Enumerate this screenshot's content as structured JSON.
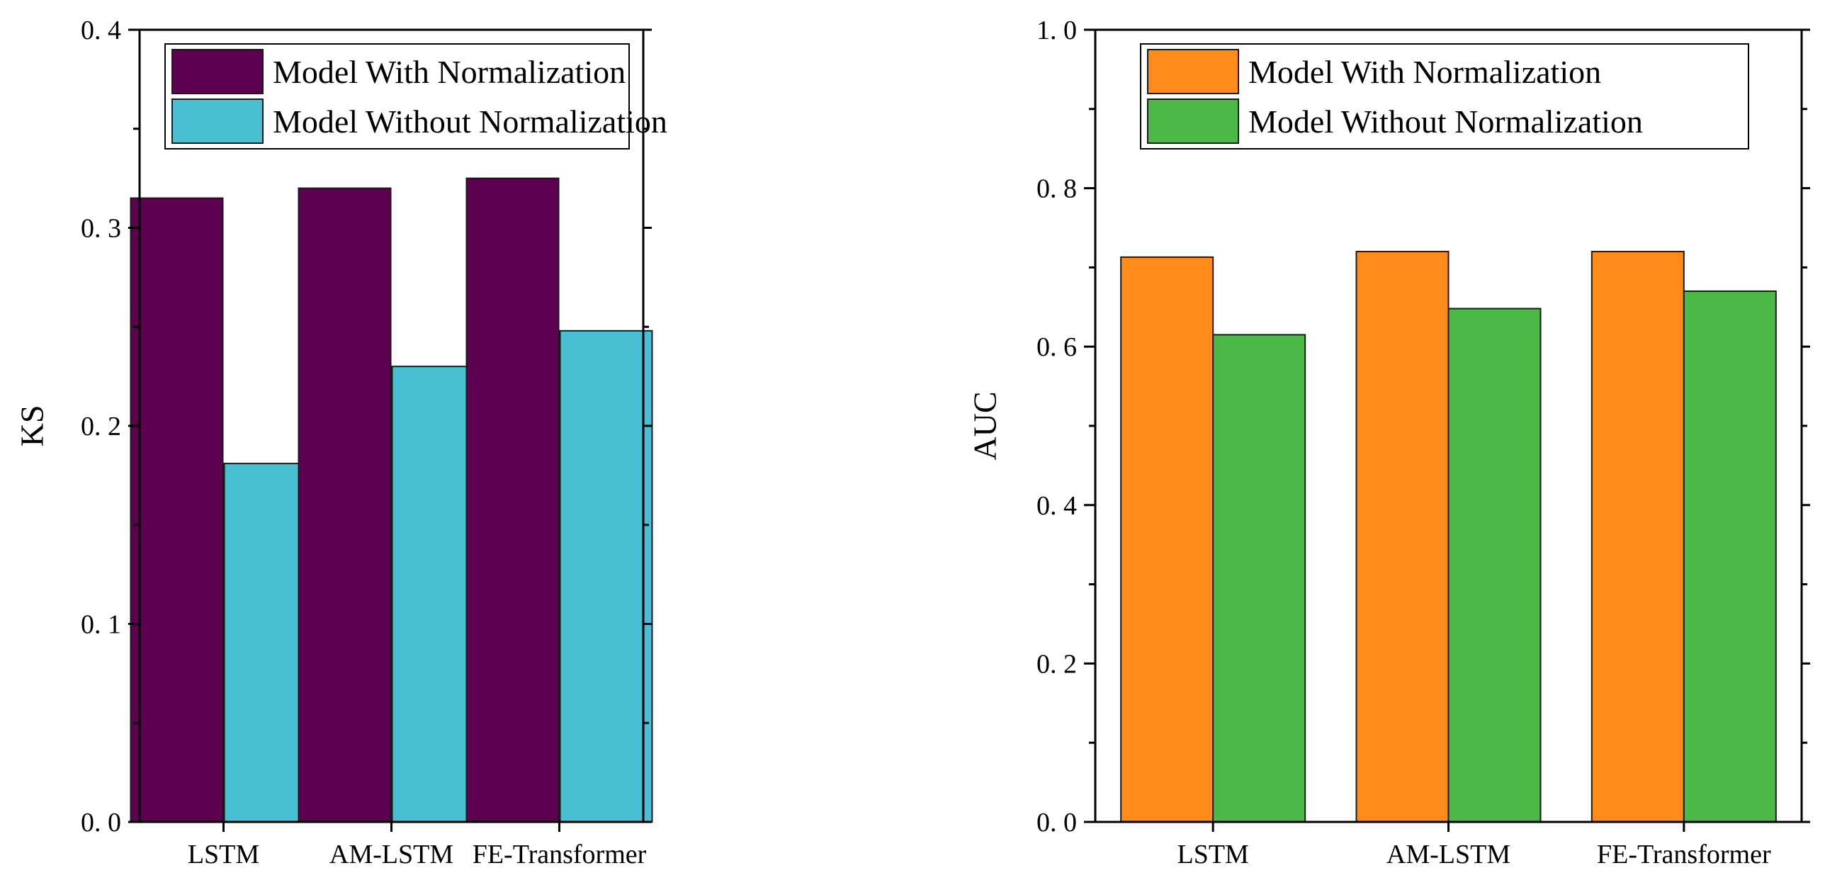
{
  "chart_data": [
    {
      "type": "bar",
      "categories": [
        "LSTM",
        "AM-LSTM",
        "FE-Transformer"
      ],
      "series": [
        {
          "name": "Model With Normalization",
          "values": [
            0.315,
            0.32,
            0.325
          ],
          "color": "#5e0050"
        },
        {
          "name": "Model Without Normalization",
          "values": [
            0.181,
            0.23,
            0.248
          ],
          "color": "#4abed3"
        }
      ],
      "ylabel": "KS",
      "ylim": [
        0,
        0.4
      ],
      "yticks": [
        0.0,
        0.1,
        0.2,
        0.3,
        0.4
      ],
      "ytick_labels": [
        "0. 0",
        "0. 1",
        "0. 2",
        "0. 3",
        "0. 4"
      ],
      "legend": "top-right",
      "grid": false
    },
    {
      "type": "bar",
      "categories": [
        "LSTM",
        "AM-LSTM",
        "FE-Transformer"
      ],
      "series": [
        {
          "name": "Model With Normalization",
          "values": [
            0.713,
            0.72,
            0.72
          ],
          "color": "#ff8c1a"
        },
        {
          "name": "Model Without Normalization",
          "values": [
            0.615,
            0.648,
            0.67
          ],
          "color": "#4cb848"
        }
      ],
      "ylabel": "AUC",
      "ylim": [
        0,
        1.0
      ],
      "yticks": [
        0.0,
        0.2,
        0.4,
        0.6,
        0.8,
        1.0
      ],
      "ytick_labels": [
        "0. 0",
        "0. 2",
        "0. 4",
        "0. 6",
        "0. 8",
        "1. 0"
      ],
      "legend": "top-right",
      "grid": false
    }
  ]
}
